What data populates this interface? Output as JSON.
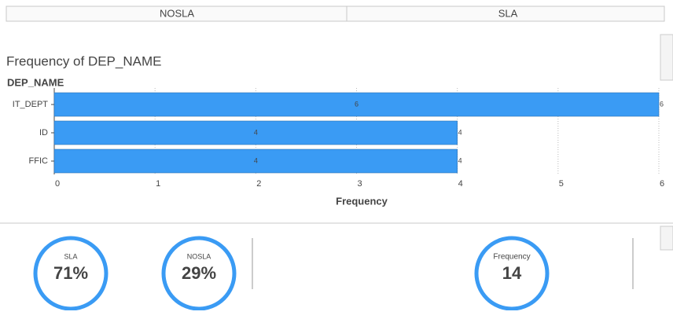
{
  "tabs": [
    "NOSLA",
    "SLA"
  ],
  "chart_data": {
    "type": "hbar",
    "title": "Frequency of DEP_NAME",
    "ylabel": "DEP_NAME",
    "xlabel": "Frequency",
    "categories": [
      "IT_DEPT",
      "ID",
      "FFIC"
    ],
    "values": [
      6,
      4,
      4
    ],
    "color": "#3a9bf4",
    "xlim": [
      0,
      6
    ],
    "xticks": [
      0,
      1,
      2,
      3,
      4,
      5,
      6
    ],
    "grid": true
  },
  "kpis": [
    {
      "label": "SLA",
      "value": "71%"
    },
    {
      "label": "NOSLA",
      "value": "29%"
    },
    {
      "label": "Frequency",
      "value": "14"
    }
  ]
}
